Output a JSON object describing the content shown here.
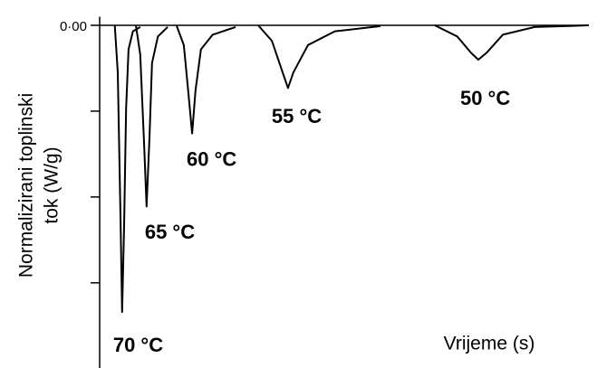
{
  "chart_data": {
    "type": "line",
    "y_label_lines": [
      "Normalizirani toplinski",
      "tok (W/g)"
    ],
    "x_label": "Vrijeme (s)",
    "xlim": [
      0,
      100
    ],
    "ylim": [
      -3.95,
      0.1
    ],
    "yticks": [
      {
        "value": 0,
        "label": "0·00"
      }
    ],
    "minor_yticks": [
      -1,
      -2,
      -3
    ],
    "color": "#000000",
    "series": [
      {
        "name": "70 °C",
        "color": "#000000",
        "x": [
          3.1,
          3.7,
          4.3,
          4.6,
          5.0,
          5.4,
          5.9,
          6.8,
          8.3
        ],
        "values": [
          0,
          -0.55,
          -2.34,
          -3.34,
          -2.34,
          -0.97,
          -0.28,
          -0.07,
          -0.02
        ]
      },
      {
        "name": "65 °C",
        "color": "#000000",
        "x": [
          7.4,
          8.3,
          9.1,
          9.6,
          10.2,
          10.7,
          11.9,
          13.9
        ],
        "values": [
          0,
          -0.34,
          -1.39,
          -2.11,
          -1.28,
          -0.44,
          -0.13,
          -0.02
        ]
      },
      {
        "name": "60 °C",
        "color": "#000000",
        "x": [
          15.7,
          17.2,
          18.1,
          18.9,
          19.6,
          20.7,
          23.1,
          27.8
        ],
        "values": [
          0,
          -0.23,
          -0.76,
          -1.26,
          -0.76,
          -0.28,
          -0.11,
          -0.02
        ]
      },
      {
        "name": "55 °C",
        "color": "#000000",
        "x": [
          32.4,
          35.2,
          37.4,
          38.5,
          39.6,
          42.6,
          48.1,
          57.4
        ],
        "values": [
          0,
          -0.18,
          -0.55,
          -0.73,
          -0.55,
          -0.23,
          -0.07,
          -0.01
        ]
      },
      {
        "name": "50 °C",
        "color": "#000000",
        "x": [
          68.5,
          73.1,
          75.9,
          77.4,
          79.1,
          82.4,
          88.9,
          100
        ],
        "values": [
          0,
          -0.13,
          -0.32,
          -0.4,
          -0.32,
          -0.11,
          -0.02,
          0
        ]
      }
    ]
  }
}
